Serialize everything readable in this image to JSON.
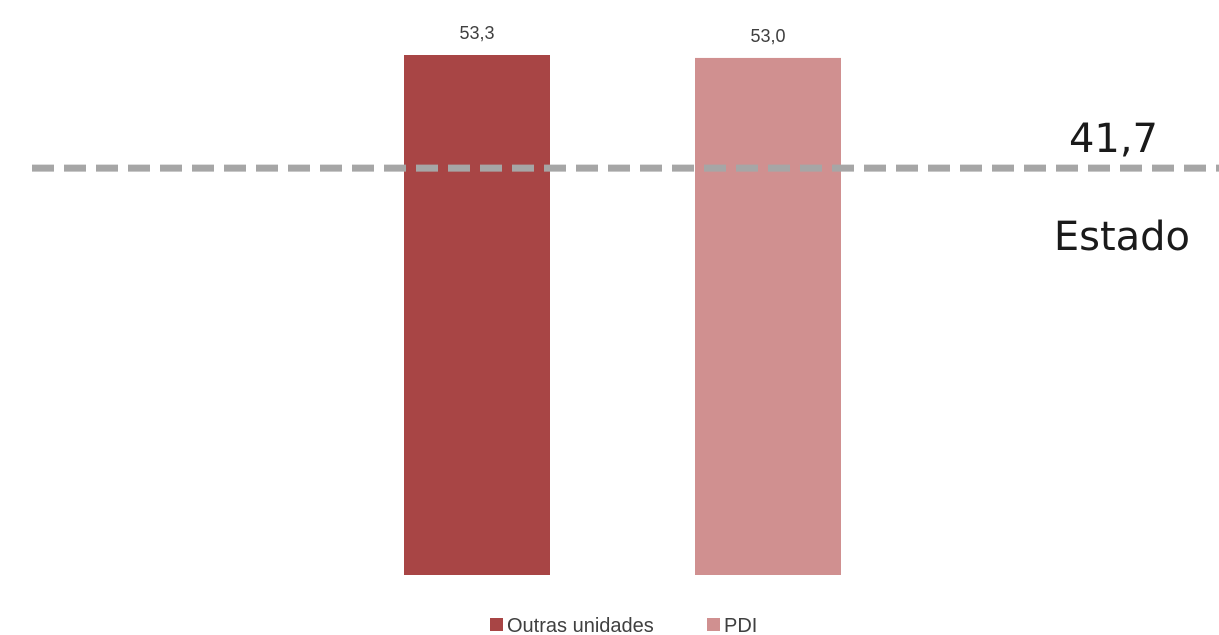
{
  "chart_data": {
    "type": "bar",
    "series": [
      {
        "name": "Outras unidades",
        "value": 53.3,
        "label": "53,3",
        "color": "#a84545"
      },
      {
        "name": "PDI",
        "value": 53.0,
        "label": "53,0",
        "color": "#d09090"
      }
    ],
    "reference_line": {
      "value": 41.7,
      "value_label": "41,7",
      "label": "Estado",
      "color": "#a6a6a6",
      "style": "dashed"
    },
    "ylim": [
      0,
      53.3
    ],
    "grid": false,
    "legend_position": "bottom"
  }
}
